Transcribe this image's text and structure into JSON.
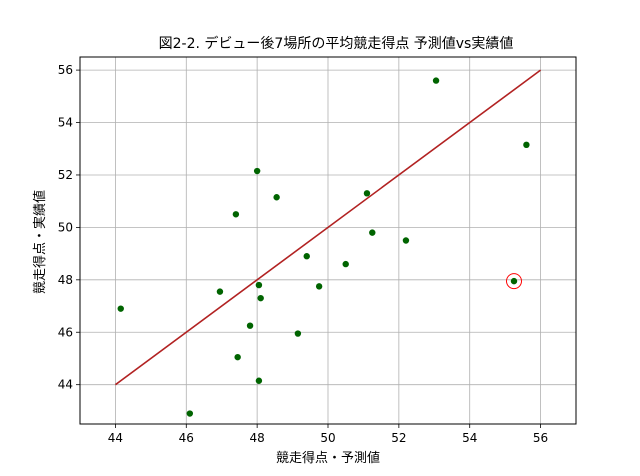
{
  "chart_data": {
    "type": "scatter",
    "title": "図2-2. デビュー後7場所の平均競走得点 予測値vs実績値",
    "xlabel": "競走得点・予測値",
    "ylabel": "競走得点・実績値",
    "xlim": [
      43.0,
      57.0
    ],
    "ylim": [
      42.5,
      56.5
    ],
    "xticks": [
      "44",
      "46",
      "48",
      "50",
      "52",
      "54",
      "56"
    ],
    "yticks": [
      "44",
      "46",
      "48",
      "50",
      "52",
      "54",
      "56"
    ],
    "grid": true,
    "colors": {
      "points": "#006400",
      "reference_line": "#b22222",
      "highlight_ring": "#ff0000",
      "grid": "#b0b0b0"
    },
    "reference_line": {
      "x": [
        44,
        56
      ],
      "y": [
        44,
        56
      ]
    },
    "points": [
      {
        "x": 44.15,
        "y": 46.9
      },
      {
        "x": 46.1,
        "y": 42.9
      },
      {
        "x": 46.95,
        "y": 47.55
      },
      {
        "x": 47.4,
        "y": 50.5
      },
      {
        "x": 47.45,
        "y": 45.05
      },
      {
        "x": 47.8,
        "y": 46.25
      },
      {
        "x": 48.0,
        "y": 52.15
      },
      {
        "x": 48.05,
        "y": 47.8
      },
      {
        "x": 48.05,
        "y": 44.15
      },
      {
        "x": 48.1,
        "y": 47.3
      },
      {
        "x": 48.55,
        "y": 51.15
      },
      {
        "x": 49.15,
        "y": 45.95
      },
      {
        "x": 49.4,
        "y": 48.9
      },
      {
        "x": 49.75,
        "y": 47.75
      },
      {
        "x": 50.5,
        "y": 48.6
      },
      {
        "x": 51.1,
        "y": 51.3
      },
      {
        "x": 51.25,
        "y": 49.8
      },
      {
        "x": 52.2,
        "y": 49.5
      },
      {
        "x": 53.05,
        "y": 55.6
      },
      {
        "x": 55.25,
        "y": 47.95
      },
      {
        "x": 55.6,
        "y": 53.15
      }
    ],
    "highlight": {
      "x": 55.25,
      "y": 47.95
    }
  }
}
